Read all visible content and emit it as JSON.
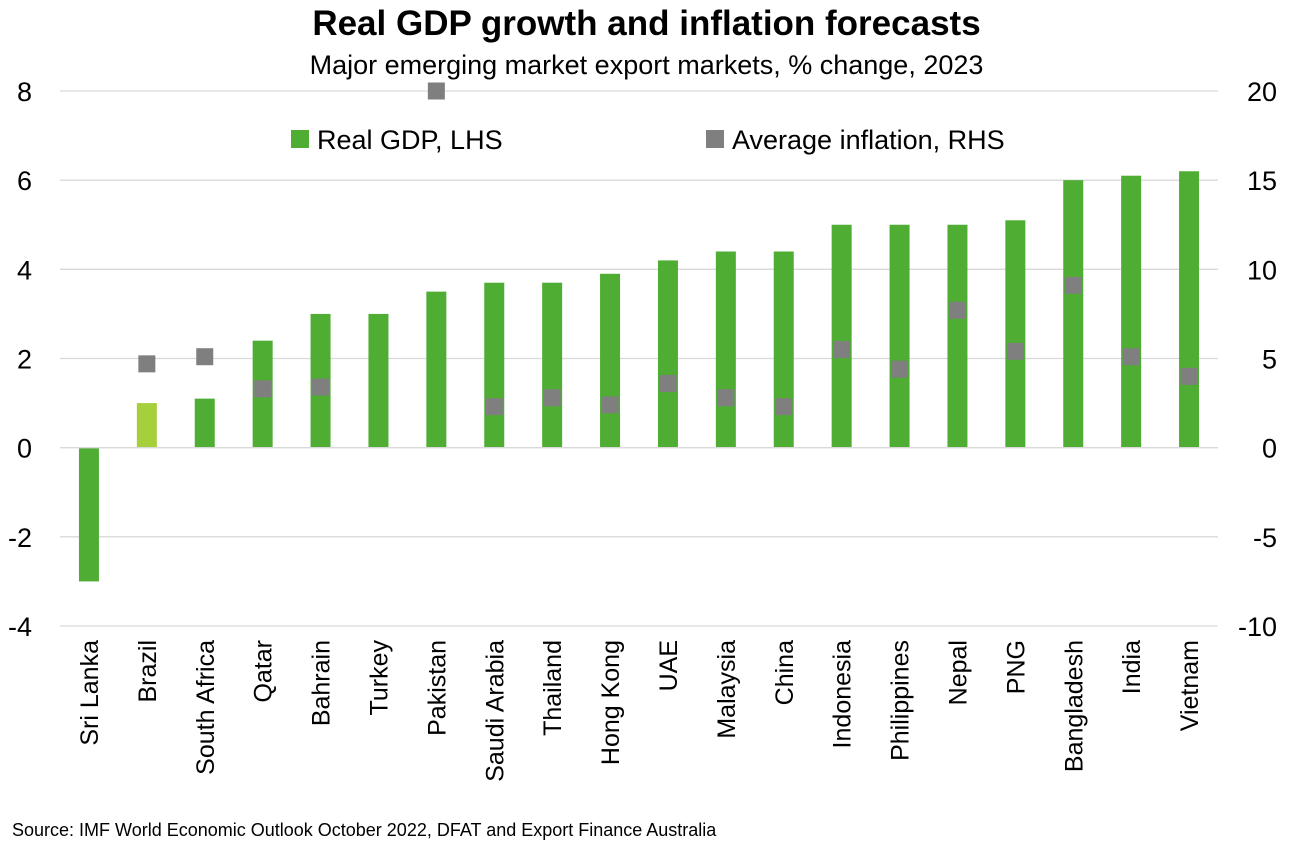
{
  "chart_data": {
    "type": "bar",
    "title": "Real GDP growth and inflation forecasts",
    "subtitle": "Major emerging market export markets, % change, 2023",
    "source": "Source: IMF World Economic Outlook October 2022, DFAT and Export Finance Australia",
    "categories": [
      "Sri Lanka",
      "Brazil",
      "South Africa",
      "Qatar",
      "Bahrain",
      "Turkey",
      "Pakistan",
      "Saudi Arabia",
      "Thailand",
      "Hong Kong",
      "UAE",
      "Malaysia",
      "China",
      "Indonesia",
      "Philippines",
      "Nepal",
      "PNG",
      "Bangladesh",
      "India",
      "Vietnam"
    ],
    "series": [
      {
        "name": "Real GDP, LHS",
        "axis": "left",
        "color": "#4fad34",
        "highlight_color": "#a6cf3c",
        "highlight_index": 1,
        "values": [
          -3.0,
          1.0,
          1.1,
          2.4,
          3.0,
          3.0,
          3.5,
          3.7,
          3.7,
          3.9,
          4.2,
          4.4,
          4.4,
          5.0,
          5.0,
          5.0,
          5.1,
          6.0,
          6.1,
          6.2
        ]
      },
      {
        "name": "Average inflation, RHS",
        "axis": "right",
        "color": "#7f7f7f",
        "marker": "square",
        "values": [
          null,
          4.7,
          5.1,
          3.3,
          3.4,
          null,
          20.0,
          2.3,
          2.8,
          2.4,
          3.6,
          2.8,
          2.3,
          5.5,
          4.4,
          7.7,
          5.4,
          9.1,
          5.1,
          4.0
        ]
      }
    ],
    "ylim_left": [
      -4,
      8
    ],
    "yticks_left": [
      "8",
      "6",
      "4",
      "2",
      "0",
      "-2",
      "-4"
    ],
    "ylim_right": [
      -10,
      20
    ],
    "yticks_right": [
      "20",
      "15",
      "10",
      "5",
      "0",
      "-5",
      "-10"
    ],
    "grid": true,
    "legend_position": "top"
  }
}
